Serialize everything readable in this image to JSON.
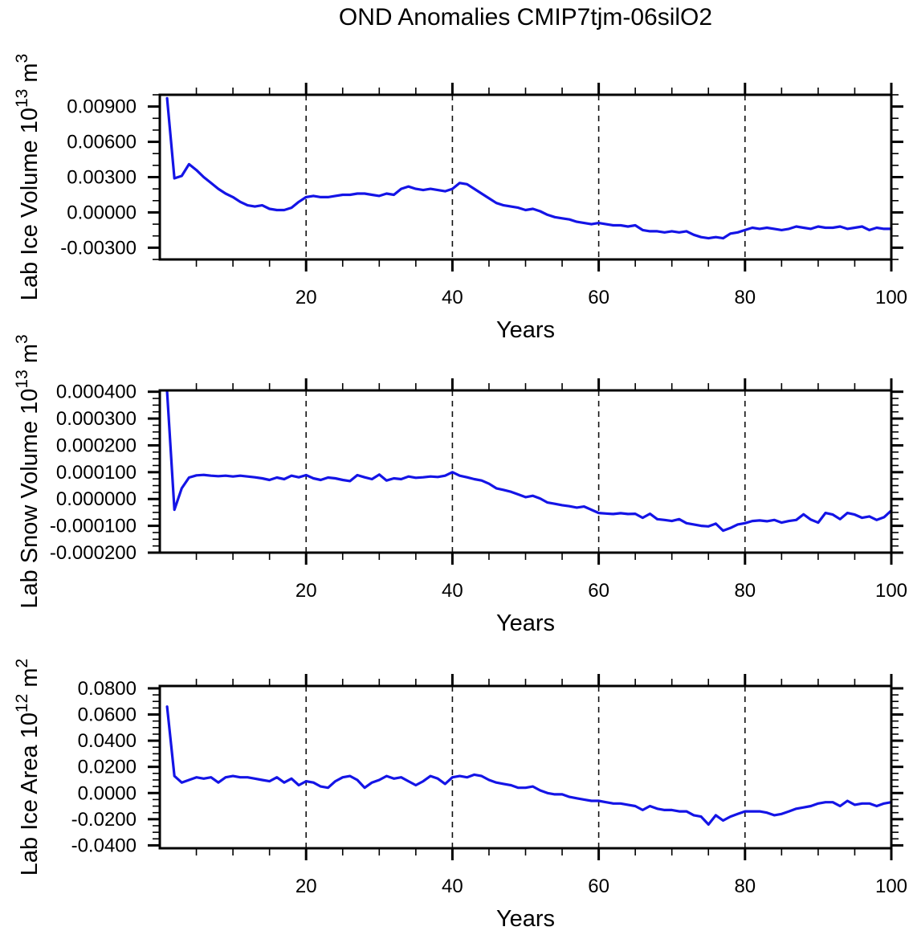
{
  "title": "OND Anomalies CMIP7tjm-06silO2",
  "style": {
    "line_color": "#1414e6",
    "axis_color": "#000000",
    "grid_color": "#111111",
    "background": "#ffffff"
  },
  "chart_data": [
    {
      "type": "line",
      "name": "lab-ice-volume",
      "ylabel_text": "Lab Ice Volume 10^13 m^3",
      "ylabel_parts": [
        {
          "t": "Lab Ice Volume 10",
          "sup": false
        },
        {
          "t": "13",
          "sup": true
        },
        {
          "t": " m",
          "sup": false
        },
        {
          "t": "3",
          "sup": true
        }
      ],
      "xlabel": "Years",
      "xlim": [
        0,
        100
      ],
      "ylim": [
        -0.004,
        0.01
      ],
      "xticks": {
        "major": [
          20,
          40,
          60,
          80,
          100
        ],
        "major_labels": [
          "20",
          "40",
          "60",
          "80",
          "100"
        ],
        "minor_step": 5
      },
      "yticks": {
        "major": [
          0.009,
          0.006,
          0.003,
          0.0,
          -0.003
        ],
        "major_labels": [
          "0.00900",
          "0.00600",
          "0.00300",
          "0.00000",
          "-0.00300"
        ],
        "minor_step": 0.001
      },
      "grid_x": [
        20,
        40,
        60,
        80
      ],
      "x_start": 1,
      "x_step": 1,
      "values": [
        0.0097,
        0.0029,
        0.0031,
        0.0041,
        0.0036,
        0.003,
        0.0025,
        0.002,
        0.0016,
        0.0013,
        0.0009,
        0.0006,
        0.0005,
        0.0006,
        0.0003,
        0.0002,
        0.0002,
        0.0004,
        0.0009,
        0.0013,
        0.0014,
        0.0013,
        0.0013,
        0.0014,
        0.0015,
        0.0015,
        0.0016,
        0.0016,
        0.0015,
        0.0014,
        0.0016,
        0.0015,
        0.002,
        0.0022,
        0.002,
        0.0019,
        0.002,
        0.0019,
        0.0018,
        0.002,
        0.0025,
        0.0024,
        0.002,
        0.0016,
        0.0012,
        0.0008,
        0.0006,
        0.0005,
        0.0004,
        0.0002,
        0.0003,
        0.0001,
        -0.0002,
        -0.0004,
        -0.0005,
        -0.0006,
        -0.0008,
        -0.0009,
        -0.001,
        -0.0009,
        -0.001,
        -0.0011,
        -0.0011,
        -0.0012,
        -0.0011,
        -0.0015,
        -0.0016,
        -0.0016,
        -0.0017,
        -0.0016,
        -0.0017,
        -0.0016,
        -0.0019,
        -0.0021,
        -0.0022,
        -0.0021,
        -0.0022,
        -0.0018,
        -0.0017,
        -0.0015,
        -0.0013,
        -0.0014,
        -0.0013,
        -0.0014,
        -0.0015,
        -0.0014,
        -0.0012,
        -0.0013,
        -0.0014,
        -0.0012,
        -0.0013,
        -0.0013,
        -0.0012,
        -0.0014,
        -0.0013,
        -0.0012,
        -0.0015,
        -0.0013,
        -0.0014,
        -0.0014
      ]
    },
    {
      "type": "line",
      "name": "lab-snow-volume",
      "ylabel_text": "Lab Snow Volume 10^13 m^3",
      "ylabel_parts": [
        {
          "t": "Lab Snow Volume 10",
          "sup": false
        },
        {
          "t": "13",
          "sup": true
        },
        {
          "t": " m",
          "sup": false
        },
        {
          "t": "3",
          "sup": true
        }
      ],
      "xlabel": "Years",
      "xlim": [
        0,
        100
      ],
      "ylim": [
        -0.0002,
        0.000405
      ],
      "xticks": {
        "major": [
          20,
          40,
          60,
          80,
          100
        ],
        "major_labels": [
          "20",
          "40",
          "60",
          "80",
          "100"
        ],
        "minor_step": 5
      },
      "yticks": {
        "major": [
          0.0004,
          0.0003,
          0.0002,
          0.0001,
          0.0,
          -0.0001,
          -0.0002
        ],
        "major_labels": [
          "0.000400",
          "0.000300",
          "0.000200",
          "0.000100",
          "0.000000",
          "-0.000100",
          "-0.000200"
        ],
        "minor_step": 2.5e-05
      },
      "grid_x": [
        20,
        40,
        60,
        80
      ],
      "x_start": 1,
      "x_step": 1,
      "values": [
        0.0004,
        -4e-05,
        4e-05,
        8e-05,
        8.8e-05,
        9e-05,
        8.7e-05,
        8.5e-05,
        8.7e-05,
        8.4e-05,
        8.7e-05,
        8.4e-05,
        8.1e-05,
        7.7e-05,
        7.1e-05,
        8e-05,
        7.4e-05,
        8.7e-05,
        8.1e-05,
        8.9e-05,
        7.7e-05,
        7.1e-05,
        8e-05,
        7.7e-05,
        7.1e-05,
        6.7e-05,
        8.9e-05,
        8.1e-05,
        7.4e-05,
        9.1e-05,
        6.9e-05,
        7.7e-05,
        7.4e-05,
        8.4e-05,
        7.9e-05,
        8.1e-05,
        8.4e-05,
        8.2e-05,
        8.7e-05,
        0.0001,
        8.7e-05,
        8.1e-05,
        7.4e-05,
        6.9e-05,
        5.7e-05,
        4e-05,
        3.4e-05,
        2.7e-05,
        1.7e-05,
        7e-06,
        1.2e-05,
        2e-06,
        -1.3e-05,
        -1.8e-05,
        -2.3e-05,
        -2.7e-05,
        -3.2e-05,
        -2.8e-05,
        -4e-05,
        -5.2e-05,
        -5.4e-05,
        -5.6e-05,
        -5.3e-05,
        -5.6e-05,
        -5.5e-05,
        -7e-05,
        -5.5e-05,
        -7.5e-05,
        -7.8e-05,
        -8.2e-05,
        -7.5e-05,
        -9e-05,
        -9.5e-05,
        -0.0001,
        -0.000102,
        -9.2e-05,
        -0.000118,
        -0.000108,
        -9.5e-05,
        -9e-05,
        -8.2e-05,
        -8e-05,
        -8.3e-05,
        -7.8e-05,
        -8.8e-05,
        -8.2e-05,
        -7.8e-05,
        -5.7e-05,
        -7.7e-05,
        -8.8e-05,
        -5.2e-05,
        -5.8e-05,
        -7.5e-05,
        -5.2e-05,
        -5.8e-05,
        -7e-05,
        -6.5e-05,
        -7.8e-05,
        -6.8e-05,
        -4.3e-05
      ]
    },
    {
      "type": "line",
      "name": "lab-ice-area",
      "ylabel_text": "Lab Ice Area 10^12 m^2",
      "ylabel_parts": [
        {
          "t": "Lab Ice Area 10",
          "sup": false
        },
        {
          "t": "12",
          "sup": true
        },
        {
          "t": " m",
          "sup": false
        },
        {
          "t": "2",
          "sup": true
        }
      ],
      "xlabel": "Years",
      "xlim": [
        0,
        100
      ],
      "ylim": [
        -0.0422,
        0.0818
      ],
      "xticks": {
        "major": [
          20,
          40,
          60,
          80,
          100
        ],
        "major_labels": [
          "20",
          "40",
          "60",
          "80",
          "100"
        ],
        "minor_step": 5
      },
      "yticks": {
        "major": [
          0.08,
          0.06,
          0.04,
          0.02,
          0.0,
          -0.02,
          -0.04
        ],
        "major_labels": [
          "0.0800",
          "0.0600",
          "0.0400",
          "0.0200",
          "0.0000",
          "-0.0200",
          "-0.0400"
        ],
        "minor_step": 0.005
      },
      "grid_x": [
        20,
        40,
        60,
        80
      ],
      "x_start": 1,
      "x_step": 1,
      "values": [
        0.066,
        0.013,
        0.008,
        0.01,
        0.012,
        0.011,
        0.012,
        0.008,
        0.012,
        0.013,
        0.012,
        0.012,
        0.011,
        0.01,
        0.009,
        0.012,
        0.008,
        0.011,
        0.006,
        0.009,
        0.008,
        0.005,
        0.004,
        0.009,
        0.012,
        0.013,
        0.01,
        0.004,
        0.008,
        0.01,
        0.013,
        0.011,
        0.012,
        0.009,
        0.006,
        0.009,
        0.013,
        0.011,
        0.007,
        0.012,
        0.013,
        0.012,
        0.014,
        0.013,
        0.01,
        0.008,
        0.007,
        0.006,
        0.004,
        0.004,
        0.005,
        0.002,
        0.0,
        -0.001,
        -0.001,
        -0.003,
        -0.004,
        -0.005,
        -0.006,
        -0.006,
        -0.007,
        -0.008,
        -0.008,
        -0.009,
        -0.01,
        -0.013,
        -0.01,
        -0.012,
        -0.013,
        -0.013,
        -0.014,
        -0.014,
        -0.017,
        -0.018,
        -0.024,
        -0.017,
        -0.021,
        -0.018,
        -0.016,
        -0.014,
        -0.014,
        -0.014,
        -0.015,
        -0.017,
        -0.016,
        -0.014,
        -0.012,
        -0.011,
        -0.01,
        -0.008,
        -0.007,
        -0.007,
        -0.01,
        -0.006,
        -0.009,
        -0.008,
        -0.008,
        -0.01,
        -0.008,
        -0.007
      ]
    }
  ]
}
